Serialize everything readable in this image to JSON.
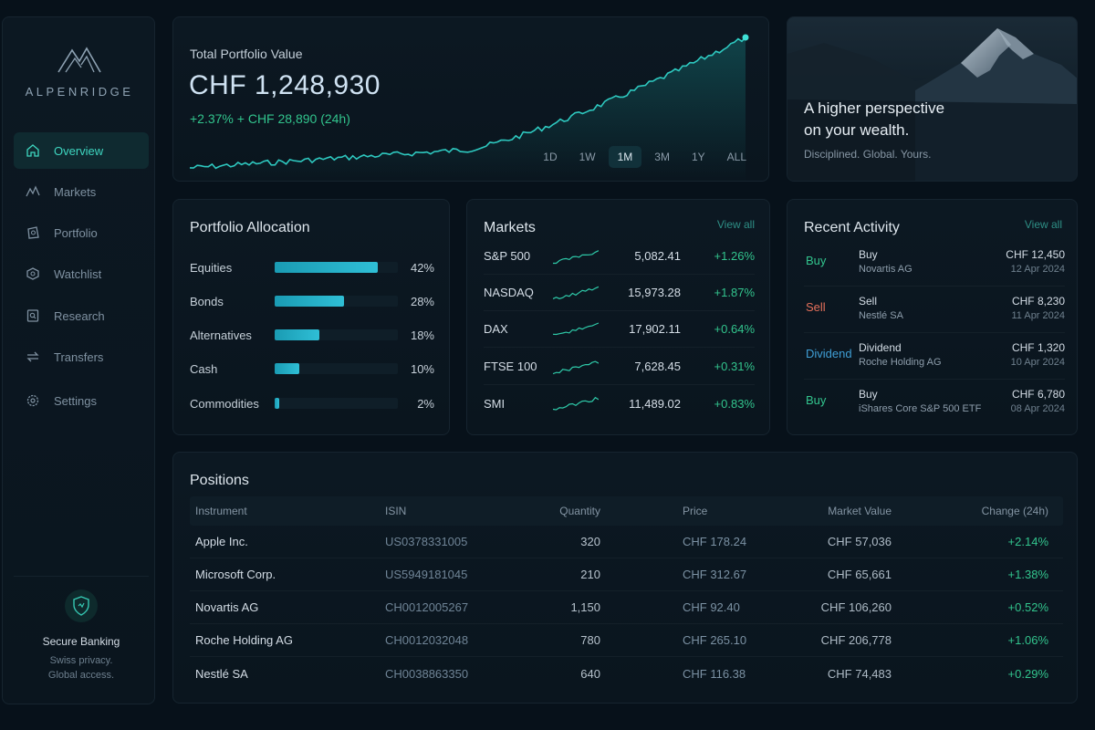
{
  "brand": {
    "name": "ALPENRIDGE",
    "logo_icon": "mountain-logo-icon"
  },
  "sidebar": {
    "items": [
      {
        "label": "Overview",
        "icon": "home-icon",
        "active": true
      },
      {
        "label": "Markets",
        "icon": "line-chart-icon",
        "active": false
      },
      {
        "label": "Portfolio",
        "icon": "briefcase-icon",
        "active": false
      },
      {
        "label": "Watchlist",
        "icon": "eye-icon",
        "active": false
      },
      {
        "label": "Research",
        "icon": "search-doc-icon",
        "active": false
      },
      {
        "label": "Transfers",
        "icon": "transfer-icon",
        "active": false
      },
      {
        "label": "Settings",
        "icon": "gear-icon",
        "active": false
      }
    ],
    "secure": {
      "title": "Secure Banking",
      "line1": "Swiss privacy.",
      "line2": "Global access.",
      "icon": "shield-icon"
    }
  },
  "portfolio_value": {
    "label": "Total Portfolio Value",
    "value": "CHF 1,248,930",
    "change": "+2.37%   + CHF 28,890 (24h)",
    "ranges": [
      "1D",
      "1W",
      "1M",
      "3M",
      "1Y",
      "ALL"
    ],
    "active_range": "1M",
    "accent": "#2ec9c0"
  },
  "hero": {
    "title_line1": "A higher perspective",
    "title_line2": "on your wealth.",
    "subtitle": "Disciplined. Global. Yours."
  },
  "allocation": {
    "title": "Portfolio Allocation",
    "items": [
      {
        "name": "Equities",
        "pct": "42%",
        "value": 42
      },
      {
        "name": "Bonds",
        "pct": "28%",
        "value": 28
      },
      {
        "name": "Alternatives",
        "pct": "18%",
        "value": 18
      },
      {
        "name": "Cash",
        "pct": "10%",
        "value": 10
      },
      {
        "name": "Commodities",
        "pct": "2%",
        "value": 2
      }
    ]
  },
  "markets": {
    "title": "Markets",
    "view_all": "View all",
    "items": [
      {
        "name": "S&P 500",
        "value": "5,082.41",
        "change": "+1.26%"
      },
      {
        "name": "NASDAQ",
        "value": "15,973.28",
        "change": "+1.87%"
      },
      {
        "name": "DAX",
        "value": "17,902.11",
        "change": "+0.64%"
      },
      {
        "name": "FTSE 100",
        "value": "7,628.45",
        "change": "+0.31%"
      },
      {
        "name": "SMI",
        "value": "11,489.02",
        "change": "+0.83%"
      }
    ]
  },
  "activity": {
    "title": "Recent Activity",
    "view_all": "View all",
    "items": [
      {
        "type": "Buy",
        "title": "Buy",
        "sub": "Novartis AG",
        "amount": "CHF 12,450",
        "date": "12 Apr 2024",
        "color": "#32c48d"
      },
      {
        "type": "Sell",
        "title": "Sell",
        "sub": "Nestlé SA",
        "amount": "CHF 8,230",
        "date": "11 Apr 2024",
        "color": "#e36f5a"
      },
      {
        "type": "Dividend",
        "title": "Dividend",
        "sub": "Roche Holding AG",
        "amount": "CHF 1,320",
        "date": "10 Apr 2024",
        "color": "#3f9fd6"
      },
      {
        "type": "Buy",
        "title": "Buy",
        "sub": "iShares Core S&P 500 ETF",
        "amount": "CHF 6,780",
        "date": "08 Apr 2024",
        "color": "#32c48d"
      }
    ]
  },
  "positions": {
    "title": "Positions",
    "columns": [
      "Instrument",
      "ISIN",
      "Quantity",
      "Price",
      "Market Value",
      "Change (24h)"
    ],
    "rows": [
      {
        "instrument": "Apple Inc.",
        "isin": "US0378331005",
        "qty": "320",
        "price": "CHF 178.24",
        "mv": "CHF 57,036",
        "chg": "+2.14%"
      },
      {
        "instrument": "Microsoft Corp.",
        "isin": "US5949181045",
        "qty": "210",
        "price": "CHF 312.67",
        "mv": "CHF 65,661",
        "chg": "+1.38%"
      },
      {
        "instrument": "Novartis AG",
        "isin": "CH0012005267",
        "qty": "1,150",
        "price": "CHF 92.40",
        "mv": "CHF 106,260",
        "chg": "+0.52%"
      },
      {
        "instrument": "Roche Holding AG",
        "isin": "CH0012032048",
        "qty": "780",
        "price": "CHF 265.10",
        "mv": "CHF 206,778",
        "chg": "+1.06%"
      },
      {
        "instrument": "Nestlé SA",
        "isin": "CH0038863350",
        "qty": "640",
        "price": "CHF 116.38",
        "mv": "CHF 74,483",
        "chg": "+0.29%"
      }
    ]
  }
}
